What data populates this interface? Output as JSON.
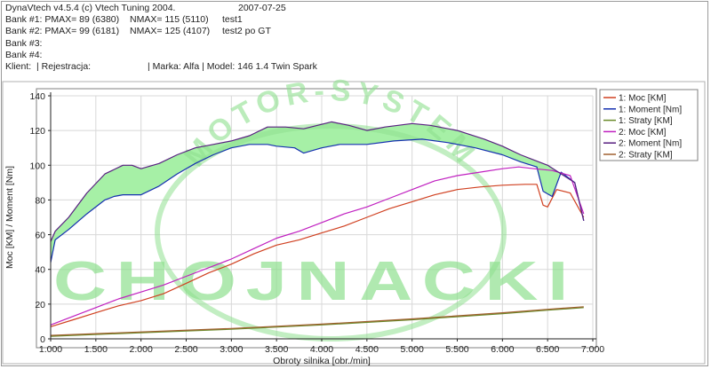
{
  "header": {
    "app": "DynaVtech v4.5.4 (c) Vtech Tuning 2004.",
    "date": "2007-07-25",
    "bank1_p": "Bank #1: PMAX= 89 (6380)",
    "bank1_n": "NMAX= 115 (5110)",
    "bank1_name": "test1",
    "bank2_p": "Bank #2: PMAX= 99 (6181)",
    "bank2_n": "NMAX= 125 (4107)",
    "bank2_name": "test2 po GT",
    "bank3": "Bank #3:",
    "bank4": "Bank #4:",
    "client_a": "Klient:  | Rejestracja:",
    "client_b": "| Marka: Alfa | Model: 146 1.4 Twin Spark"
  },
  "watermark": {
    "arc_text": "MOTOR-SYSTEM",
    "main_text": "CHOJNACKI",
    "color": "#8fe08f"
  },
  "chart_data": {
    "type": "line",
    "xlabel": "Obroty silnika [obr./min]",
    "ylabel": "Moc [KM] / Moment [Nm]",
    "xlim": [
      1000,
      7000
    ],
    "ylim": [
      0,
      140
    ],
    "x_ticks": [
      1000,
      1500,
      2000,
      2500,
      3000,
      3500,
      4000,
      4500,
      5000,
      5500,
      6000,
      6500,
      7000
    ],
    "x_tick_labels": [
      "1.000",
      "1.500",
      "2.000",
      "2.500",
      "3.000",
      "3.500",
      "4.000",
      "4.500",
      "5.000",
      "5.500",
      "6.000",
      "6.500",
      "7.000"
    ],
    "y_ticks": [
      0,
      20,
      40,
      60,
      80,
      100,
      120,
      140
    ],
    "y_tick_labels": [
      "0",
      "20",
      "40",
      "60",
      "80",
      "100",
      "120",
      "140"
    ],
    "fill_between": [
      "1: Moment [Nm]",
      "2: Moment [Nm]"
    ],
    "fill_color": "#a6f0a6",
    "legend_position": "right",
    "series": [
      {
        "name": "1: Moc [KM]",
        "color": "#d04020",
        "x": [
          1000,
          1250,
          1500,
          1750,
          2000,
          2250,
          2500,
          2750,
          3000,
          3250,
          3500,
          3750,
          4000,
          4250,
          4500,
          4750,
          5000,
          5250,
          5500,
          5750,
          6000,
          6250,
          6380,
          6450,
          6500,
          6600,
          6750,
          6900
        ],
        "y": [
          7,
          11,
          15,
          19,
          22,
          26,
          32,
          38,
          43,
          49,
          54,
          57,
          61,
          65,
          70,
          75,
          79,
          83,
          86,
          87.5,
          88.5,
          89,
          89,
          77,
          76,
          86,
          84,
          70
        ]
      },
      {
        "name": "1: Moment [Nm]",
        "color": "#1530b0",
        "x": [
          1000,
          1050,
          1200,
          1400,
          1600,
          1700,
          1800,
          2000,
          2200,
          2400,
          2600,
          2800,
          3000,
          3200,
          3400,
          3500,
          3700,
          3800,
          4000,
          4200,
          4500,
          4800,
          5110,
          5400,
          5700,
          6000,
          6200,
          6380,
          6450,
          6550,
          6650,
          6800,
          6900
        ],
        "y": [
          44,
          57,
          63,
          72,
          80,
          82,
          83,
          83,
          88,
          95,
          101,
          106,
          110,
          112,
          112,
          111,
          110,
          107,
          110,
          112,
          112,
          114,
          115,
          113,
          110,
          106,
          102,
          99,
          85,
          82,
          96,
          90,
          68
        ]
      },
      {
        "name": "1: Straty [KM]",
        "color": "#6a8a2a",
        "x": [
          1000,
          2000,
          3000,
          4000,
          5000,
          6000,
          6500,
          6900
        ],
        "y": [
          1.5,
          3.5,
          5.5,
          8,
          11,
          14.5,
          16.5,
          18
        ]
      },
      {
        "name": "2: Moc [KM]",
        "color": "#c020c0",
        "x": [
          1000,
          1250,
          1500,
          1750,
          2000,
          2250,
          2500,
          2750,
          3000,
          3250,
          3500,
          3750,
          4000,
          4250,
          4500,
          4750,
          5000,
          5250,
          5500,
          5750,
          6000,
          6181,
          6350,
          6550,
          6750,
          6900
        ],
        "y": [
          8,
          13,
          18,
          23,
          27,
          31,
          36,
          41,
          46,
          52,
          58,
          62,
          67,
          72,
          76,
          81,
          86,
          91,
          94,
          96,
          98,
          99,
          98,
          97,
          94,
          72
        ]
      },
      {
        "name": "2: Moment [Nm]",
        "color": "#582080",
        "x": [
          1000,
          1050,
          1200,
          1400,
          1600,
          1800,
          1900,
          2000,
          2200,
          2400,
          2600,
          2800,
          3000,
          3200,
          3400,
          3600,
          3800,
          4107,
          4300,
          4500,
          4700,
          5000,
          5200,
          5500,
          5800,
          6000,
          6200,
          6350,
          6500,
          6650,
          6800,
          6900
        ],
        "y": [
          56,
          62,
          70,
          84,
          95,
          100,
          100,
          98,
          101,
          106,
          110,
          112,
          114,
          117,
          122,
          122,
          121,
          125,
          123,
          120,
          122,
          124,
          123,
          120,
          115,
          111,
          106,
          103,
          100,
          95,
          90,
          68
        ]
      },
      {
        "name": "2: Straty [KM]",
        "color": "#a06030",
        "x": [
          1000,
          2000,
          3000,
          4000,
          5000,
          6000,
          6500,
          6900
        ],
        "y": [
          2,
          4,
          6,
          8.5,
          11.5,
          15,
          17,
          18.5
        ]
      }
    ]
  }
}
